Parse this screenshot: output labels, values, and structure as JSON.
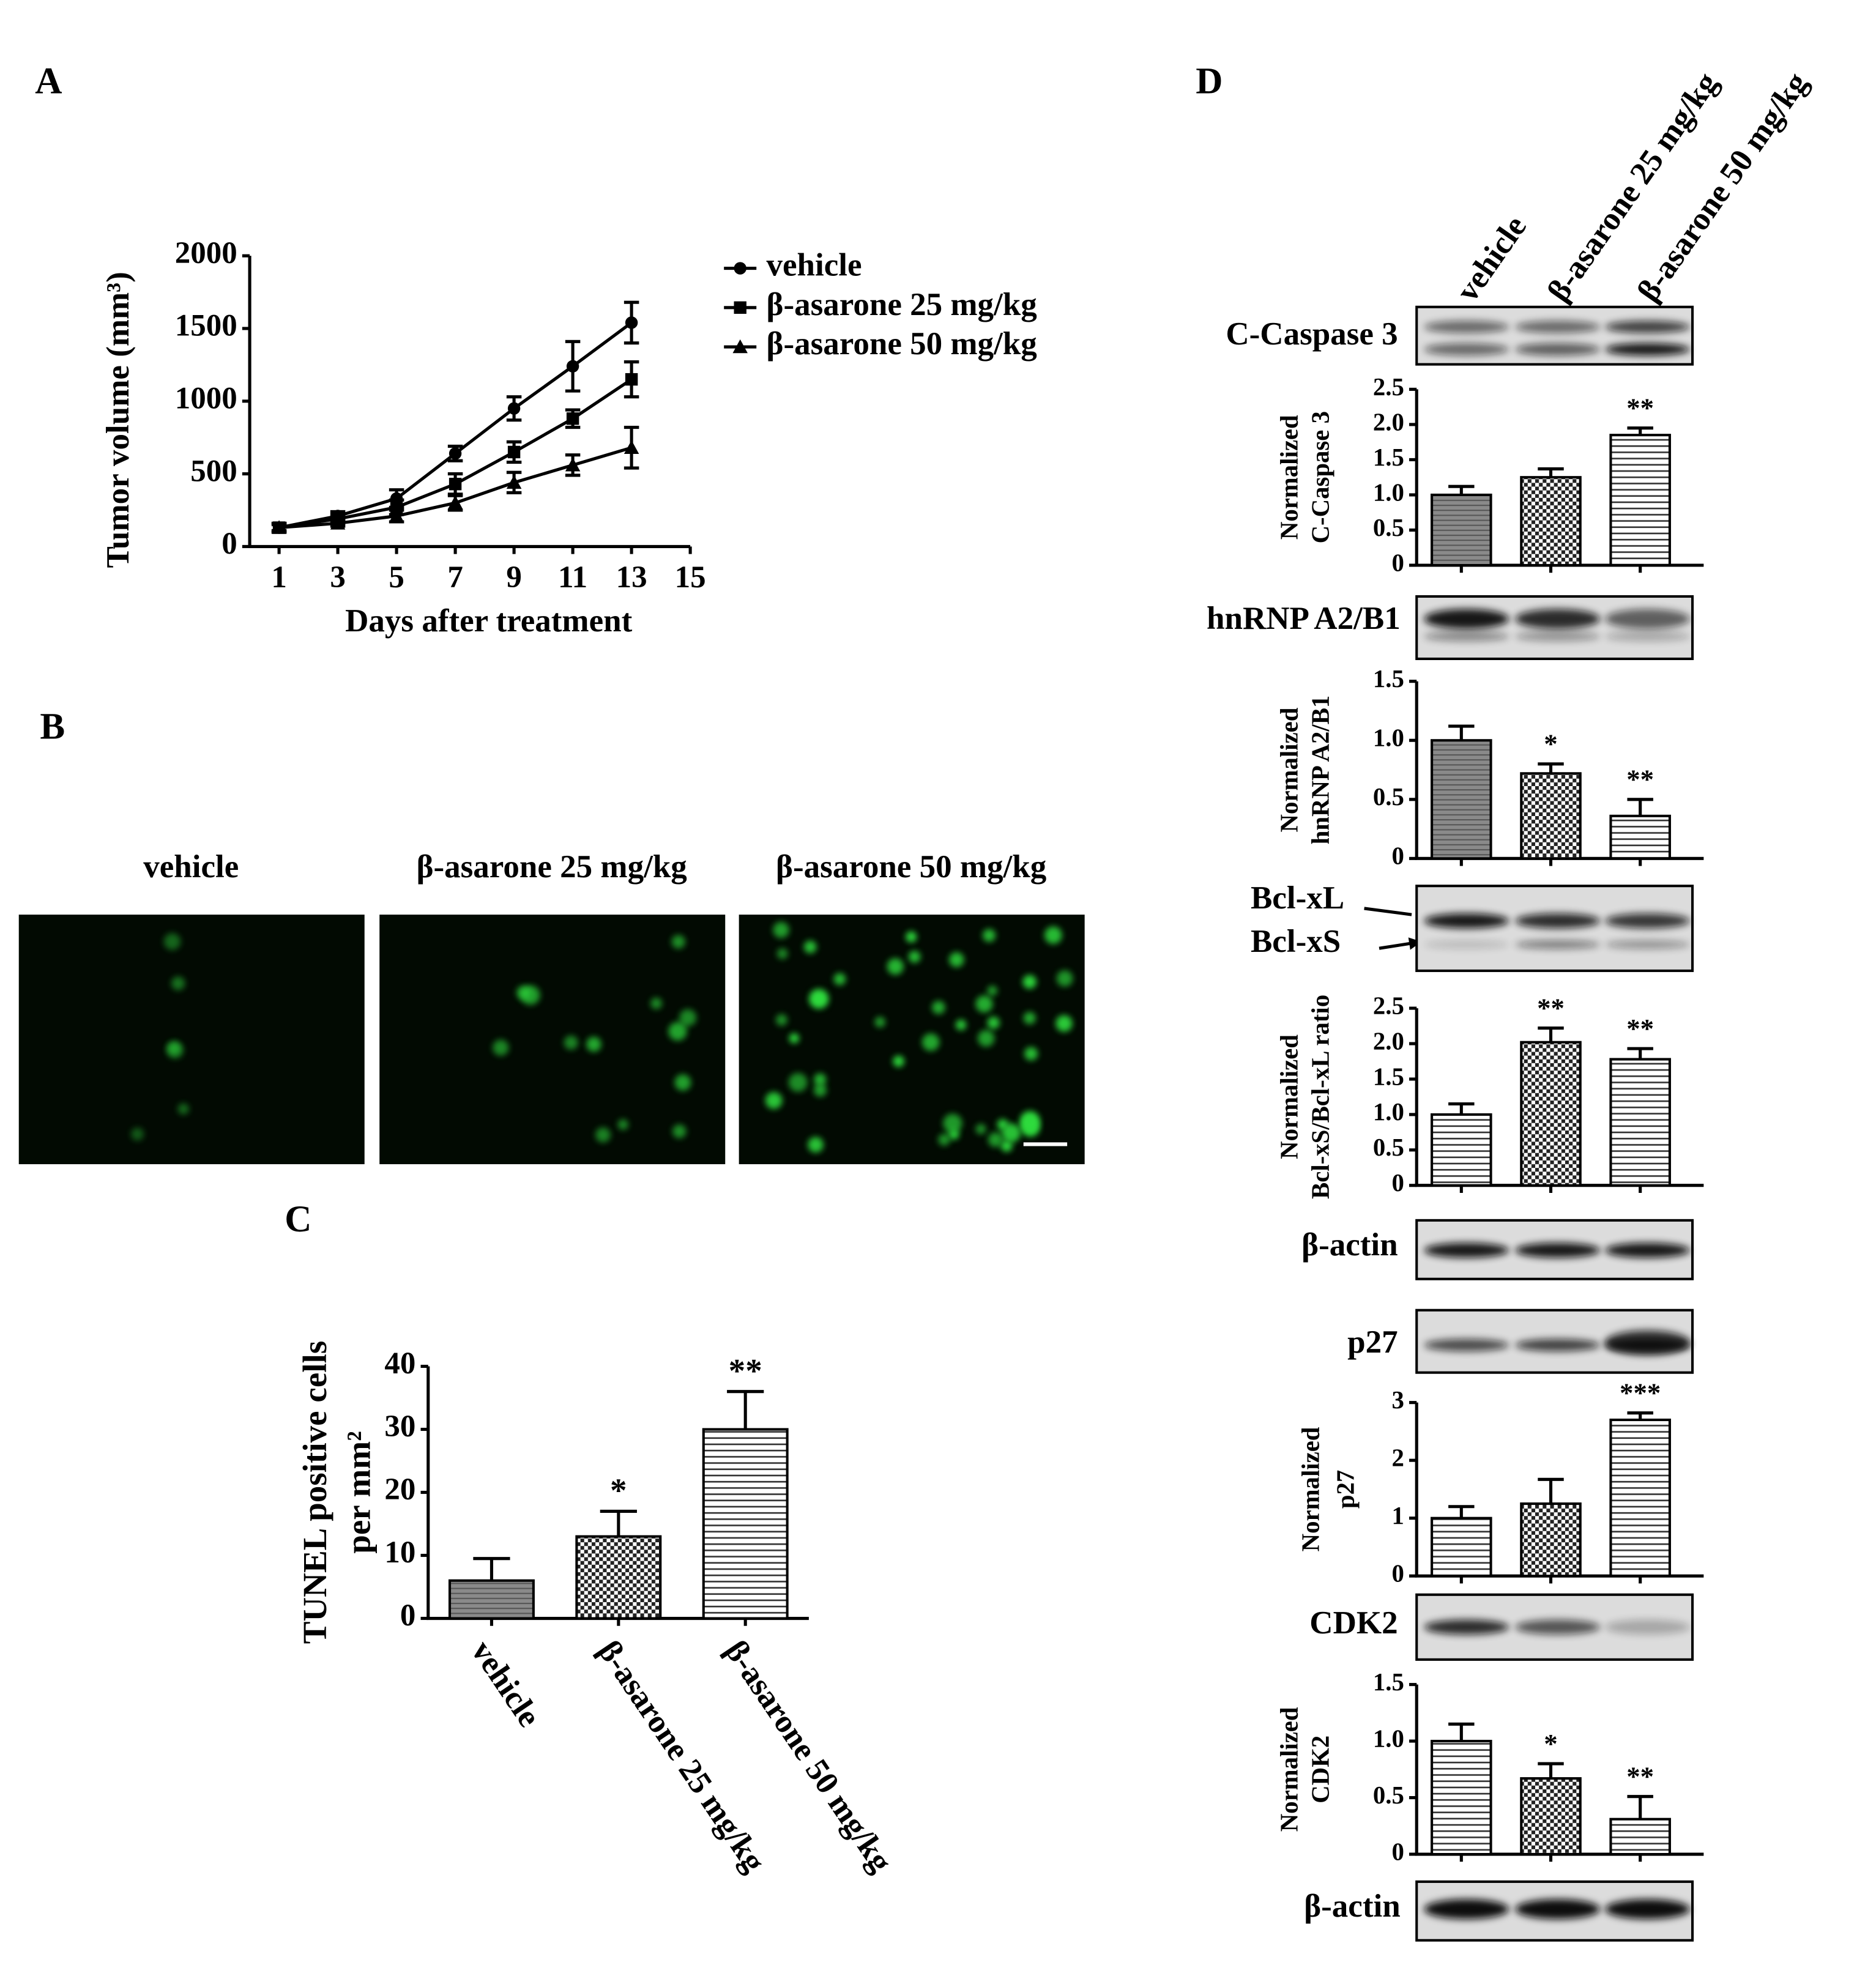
{
  "panel_labels": [
    "A",
    "B",
    "C",
    "D"
  ],
  "chart_data": [
    {
      "type": "line",
      "xlabel": "Days after treatment",
      "ylabel": "Tumor volume (mm³)",
      "x": [
        1,
        3,
        5,
        7,
        9,
        11,
        13
      ],
      "xlim": [
        0,
        15
      ],
      "xticks": [
        1,
        3,
        5,
        7,
        9,
        11,
        13,
        15
      ],
      "ylim": [
        0,
        2000
      ],
      "yticks": [
        0,
        500,
        1000,
        1500,
        2000
      ],
      "series": [
        {
          "name": "vehicle",
          "color": "#000000",
          "marker": "circle",
          "values": [
            130,
            210,
            330,
            640,
            950,
            1240,
            1540
          ],
          "errors": [
            30,
            30,
            60,
            50,
            80,
            170,
            140
          ]
        },
        {
          "name": "β-asarone 25 mg/kg",
          "color": "#000000",
          "marker": "square",
          "values": [
            130,
            190,
            270,
            430,
            650,
            880,
            1150
          ],
          "errors": [
            30,
            30,
            50,
            70,
            70,
            60,
            120
          ]
        },
        {
          "name": "β-asarone 50 mg/kg",
          "color": "#000000",
          "marker": "triangle",
          "values": [
            130,
            160,
            210,
            300,
            440,
            560,
            680
          ],
          "errors": [
            20,
            20,
            40,
            50,
            70,
            70,
            140
          ]
        }
      ]
    },
    {
      "type": "bar",
      "ylabel": [
        "TUNEL positive cells",
        "per mm²"
      ],
      "categories": [
        "vehicle",
        "β-asarone 25 mg/kg",
        "β-asarone 50 mg/kg"
      ],
      "values": [
        6,
        13,
        30
      ],
      "errors": [
        3.5,
        4,
        6
      ],
      "annotations": [
        null,
        "*",
        "**"
      ],
      "patterns": [
        "gray",
        "checker",
        "stripes"
      ],
      "ylim": [
        0,
        40
      ],
      "yticks": [
        0,
        10,
        20,
        30,
        40
      ]
    },
    {
      "type": "bar",
      "ylabel": [
        "Normalized",
        "C-Caspase 3"
      ],
      "values": [
        1.0,
        1.25,
        1.85
      ],
      "errors": [
        0.12,
        0.12,
        0.1
      ],
      "annotations": [
        null,
        null,
        "**"
      ],
      "patterns": [
        "gray",
        "checker",
        "stripes"
      ],
      "ylim": [
        0,
        2.5
      ],
      "yticks": [
        0,
        0.5,
        {
          "value": 1,
          "label": "1.0"
        },
        1.5,
        {
          "value": 2,
          "label": "2.0"
        },
        2.5
      ]
    },
    {
      "type": "bar",
      "ylabel": [
        "Normalized",
        "hnRNP A2/B1"
      ],
      "values": [
        1.0,
        0.72,
        0.36
      ],
      "errors": [
        0.12,
        0.08,
        0.14
      ],
      "annotations": [
        null,
        "*",
        "**"
      ],
      "patterns": [
        "gray",
        "checker",
        "stripes"
      ],
      "ylim": [
        0,
        1.5
      ],
      "yticks": [
        0,
        0.5,
        {
          "value": 1,
          "label": "1.0"
        },
        1.5
      ]
    },
    {
      "type": "bar",
      "ylabel": [
        "Normalized",
        "Bcl-xS/Bcl-xL ratio"
      ],
      "values": [
        1.0,
        2.02,
        1.78
      ],
      "errors": [
        0.15,
        0.2,
        0.15
      ],
      "annotations": [
        null,
        "**",
        "**"
      ],
      "patterns": [
        "stripes",
        "checker",
        "stripes"
      ],
      "ylim": [
        0,
        2.5
      ],
      "yticks": [
        0,
        0.5,
        {
          "value": 1,
          "label": "1.0"
        },
        1.5,
        {
          "value": 2,
          "label": "2.0"
        },
        2.5
      ]
    },
    {
      "type": "bar",
      "ylabel": [
        "Normalized",
        "p27"
      ],
      "values": [
        1.0,
        1.25,
        2.7
      ],
      "errors": [
        0.2,
        0.42,
        0.12
      ],
      "annotations": [
        null,
        null,
        "***"
      ],
      "patterns": [
        "stripes",
        "checker",
        "stripes"
      ],
      "ylim": [
        0,
        3
      ],
      "yticks": [
        0,
        1,
        2,
        3
      ]
    },
    {
      "type": "bar",
      "ylabel": [
        "Normalized",
        "CDK2"
      ],
      "values": [
        1.0,
        0.67,
        0.31
      ],
      "errors": [
        0.15,
        0.13,
        0.2
      ],
      "annotations": [
        null,
        "*",
        "**"
      ],
      "patterns": [
        "stripes",
        "checker",
        "stripes"
      ],
      "ylim": [
        0,
        1.5
      ],
      "yticks": [
        0,
        0.5,
        {
          "value": 1,
          "label": "1.0"
        },
        1.5
      ]
    }
  ],
  "panel_b": {
    "images": [
      "vehicle",
      "β-asarone 25 mg/kg",
      "β-asarone 50 mg/kg"
    ]
  },
  "panel_d": {
    "lanes": [
      "vehicle",
      "β-asarone 25 mg/kg",
      "β-asarone 50 mg/kg"
    ],
    "blots": [
      "C-Caspase 3",
      "hnRNP A2/B1",
      "Bcl-xL",
      "Bcl-xS",
      "β-actin",
      "p27",
      "CDK2",
      "β-actin"
    ]
  }
}
